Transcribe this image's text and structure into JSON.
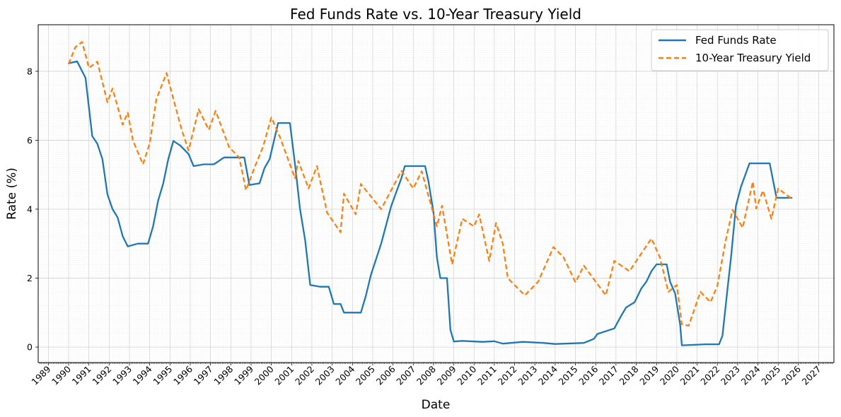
{
  "chart_data": {
    "type": "line",
    "title": "Fed Funds Rate vs. 10-Year Treasury Yield",
    "xlabel": "Date",
    "ylabel": "Rate (%)",
    "x_range": [
      "1988-07-01",
      "2027-10-01"
    ],
    "ylim": [
      -0.45,
      9.35
    ],
    "yticks": [
      0,
      2,
      4,
      6,
      8
    ],
    "xtick_years": [
      1989,
      1990,
      1991,
      1992,
      1993,
      1994,
      1995,
      1996,
      1997,
      1998,
      1999,
      2000,
      2001,
      2002,
      2003,
      2004,
      2005,
      2006,
      2007,
      2008,
      2009,
      2010,
      2011,
      2012,
      2013,
      2014,
      2015,
      2016,
      2017,
      2018,
      2019,
      2020,
      2021,
      2022,
      2023,
      2024,
      2025,
      2026,
      2027
    ],
    "grid": true,
    "legend_position": "top-right",
    "series": [
      {
        "name": "Fed Funds Rate",
        "color": "#1f77b4",
        "style": "solid",
        "points": [
          [
            "1990-01-01",
            8.23
          ],
          [
            "1990-06-01",
            8.29
          ],
          [
            "1990-11-01",
            7.81
          ],
          [
            "1991-03-01",
            6.12
          ],
          [
            "1991-06-01",
            5.9
          ],
          [
            "1991-09-01",
            5.45
          ],
          [
            "1991-12-01",
            4.43
          ],
          [
            "1992-03-01",
            4.0
          ],
          [
            "1992-06-01",
            3.76
          ],
          [
            "1992-09-01",
            3.22
          ],
          [
            "1992-12-01",
            2.92
          ],
          [
            "1993-06-01",
            3.0
          ],
          [
            "1993-12-01",
            3.0
          ],
          [
            "1994-03-01",
            3.5
          ],
          [
            "1994-06-01",
            4.25
          ],
          [
            "1994-09-01",
            4.75
          ],
          [
            "1994-12-01",
            5.45
          ],
          [
            "1995-03-01",
            5.98
          ],
          [
            "1995-07-01",
            5.85
          ],
          [
            "1995-12-01",
            5.6
          ],
          [
            "1996-03-01",
            5.25
          ],
          [
            "1996-09-01",
            5.3
          ],
          [
            "1997-03-01",
            5.3
          ],
          [
            "1997-09-01",
            5.5
          ],
          [
            "1998-06-01",
            5.5
          ],
          [
            "1998-09-01",
            5.5
          ],
          [
            "1998-12-01",
            4.7
          ],
          [
            "1999-06-01",
            4.75
          ],
          [
            "1999-09-01",
            5.2
          ],
          [
            "1999-12-01",
            5.45
          ],
          [
            "2000-05-01",
            6.5
          ],
          [
            "2000-12-01",
            6.5
          ],
          [
            "2001-03-01",
            5.3
          ],
          [
            "2001-06-01",
            4.0
          ],
          [
            "2001-09-01",
            3.1
          ],
          [
            "2001-12-01",
            1.8
          ],
          [
            "2002-06-01",
            1.75
          ],
          [
            "2002-11-01",
            1.75
          ],
          [
            "2003-02-01",
            1.25
          ],
          [
            "2003-06-01",
            1.25
          ],
          [
            "2003-08-01",
            1.0
          ],
          [
            "2004-06-01",
            1.0
          ],
          [
            "2004-09-01",
            1.5
          ],
          [
            "2004-12-01",
            2.1
          ],
          [
            "2005-06-01",
            3.0
          ],
          [
            "2005-12-01",
            4.1
          ],
          [
            "2006-06-01",
            4.9
          ],
          [
            "2006-08-01",
            5.25
          ],
          [
            "2007-08-01",
            5.25
          ],
          [
            "2007-10-01",
            4.8
          ],
          [
            "2008-01-01",
            3.9
          ],
          [
            "2008-03-01",
            2.6
          ],
          [
            "2008-05-01",
            2.0
          ],
          [
            "2008-09-01",
            2.0
          ],
          [
            "2008-11-01",
            0.5
          ],
          [
            "2009-01-01",
            0.16
          ],
          [
            "2009-06-01",
            0.18
          ],
          [
            "2010-06-01",
            0.15
          ],
          [
            "2011-01-01",
            0.17
          ],
          [
            "2011-06-01",
            0.1
          ],
          [
            "2012-06-01",
            0.15
          ],
          [
            "2013-06-01",
            0.12
          ],
          [
            "2014-01-01",
            0.09
          ],
          [
            "2015-06-01",
            0.12
          ],
          [
            "2015-12-01",
            0.24
          ],
          [
            "2016-02-01",
            0.38
          ],
          [
            "2016-12-01",
            0.54
          ],
          [
            "2017-04-01",
            0.9
          ],
          [
            "2017-07-01",
            1.15
          ],
          [
            "2017-12-01",
            1.3
          ],
          [
            "2018-04-01",
            1.7
          ],
          [
            "2018-07-01",
            1.9
          ],
          [
            "2018-10-01",
            2.2
          ],
          [
            "2019-01-01",
            2.4
          ],
          [
            "2019-07-01",
            2.4
          ],
          [
            "2019-09-01",
            1.9
          ],
          [
            "2019-12-01",
            1.55
          ],
          [
            "2020-03-01",
            0.65
          ],
          [
            "2020-04-01",
            0.05
          ],
          [
            "2021-06-01",
            0.08
          ],
          [
            "2022-02-01",
            0.08
          ],
          [
            "2022-04-01",
            0.33
          ],
          [
            "2022-07-01",
            1.68
          ],
          [
            "2022-09-01",
            2.56
          ],
          [
            "2022-12-01",
            4.1
          ],
          [
            "2023-03-01",
            4.65
          ],
          [
            "2023-08-01",
            5.33
          ],
          [
            "2024-08-01",
            5.33
          ],
          [
            "2024-10-01",
            4.83
          ],
          [
            "2024-12-01",
            4.33
          ],
          [
            "2025-09-01",
            4.33
          ]
        ]
      },
      {
        "name": "10-Year Treasury Yield",
        "color": "#ff7f0e",
        "style": "dashed",
        "points": [
          [
            "1990-01-01",
            8.21
          ],
          [
            "1990-05-01",
            8.7
          ],
          [
            "1990-09-01",
            8.85
          ],
          [
            "1991-01-01",
            8.1
          ],
          [
            "1991-06-01",
            8.28
          ],
          [
            "1991-12-01",
            7.1
          ],
          [
            "1992-03-01",
            7.5
          ],
          [
            "1992-09-01",
            6.45
          ],
          [
            "1992-12-01",
            6.8
          ],
          [
            "1993-03-01",
            6.0
          ],
          [
            "1993-09-01",
            5.3
          ],
          [
            "1994-01-01",
            5.9
          ],
          [
            "1994-05-01",
            7.2
          ],
          [
            "1994-11-01",
            7.95
          ],
          [
            "1995-03-01",
            7.2
          ],
          [
            "1995-08-01",
            6.3
          ],
          [
            "1995-12-01",
            5.7
          ],
          [
            "1996-06-01",
            6.9
          ],
          [
            "1996-12-01",
            6.3
          ],
          [
            "1997-04-01",
            6.85
          ],
          [
            "1997-12-01",
            5.8
          ],
          [
            "1998-06-01",
            5.5
          ],
          [
            "1998-10-01",
            4.55
          ],
          [
            "1999-03-01",
            5.2
          ],
          [
            "1999-08-01",
            5.8
          ],
          [
            "2000-01-01",
            6.66
          ],
          [
            "2000-06-01",
            6.1
          ],
          [
            "2000-12-01",
            5.3
          ],
          [
            "2001-03-01",
            4.9
          ],
          [
            "2001-05-01",
            5.4
          ],
          [
            "2001-11-01",
            4.6
          ],
          [
            "2002-04-01",
            5.25
          ],
          [
            "2002-10-01",
            3.9
          ],
          [
            "2003-06-01",
            3.33
          ],
          [
            "2003-08-01",
            4.45
          ],
          [
            "2004-03-01",
            3.85
          ],
          [
            "2004-06-01",
            4.73
          ],
          [
            "2005-06-01",
            4.0
          ],
          [
            "2006-06-01",
            5.11
          ],
          [
            "2007-01-01",
            4.6
          ],
          [
            "2007-06-01",
            5.1
          ],
          [
            "2008-03-01",
            3.5
          ],
          [
            "2008-06-01",
            4.1
          ],
          [
            "2008-12-01",
            2.4
          ],
          [
            "2009-06-01",
            3.72
          ],
          [
            "2010-01-01",
            3.5
          ],
          [
            "2010-04-01",
            3.85
          ],
          [
            "2010-10-01",
            2.5
          ],
          [
            "2011-02-01",
            3.6
          ],
          [
            "2011-06-01",
            3.0
          ],
          [
            "2011-09-01",
            2.0
          ],
          [
            "2012-07-01",
            1.5
          ],
          [
            "2013-03-01",
            1.9
          ],
          [
            "2013-12-01",
            2.9
          ],
          [
            "2014-06-01",
            2.6
          ],
          [
            "2015-01-01",
            1.88
          ],
          [
            "2015-06-01",
            2.36
          ],
          [
            "2016-07-01",
            1.5
          ],
          [
            "2016-12-01",
            2.5
          ],
          [
            "2017-09-01",
            2.2
          ],
          [
            "2018-10-01",
            3.15
          ],
          [
            "2019-03-01",
            2.6
          ],
          [
            "2019-08-01",
            1.6
          ],
          [
            "2020-01-01",
            1.8
          ],
          [
            "2020-04-01",
            0.66
          ],
          [
            "2020-08-01",
            0.62
          ],
          [
            "2021-03-01",
            1.6
          ],
          [
            "2021-09-01",
            1.3
          ],
          [
            "2022-01-01",
            1.78
          ],
          [
            "2022-06-01",
            3.1
          ],
          [
            "2022-10-01",
            3.98
          ],
          [
            "2023-04-01",
            3.46
          ],
          [
            "2023-10-01",
            4.8
          ],
          [
            "2023-12-01",
            4.02
          ],
          [
            "2024-04-01",
            4.54
          ],
          [
            "2024-09-01",
            3.72
          ],
          [
            "2025-01-01",
            4.6
          ],
          [
            "2025-09-01",
            4.3
          ]
        ]
      }
    ]
  }
}
